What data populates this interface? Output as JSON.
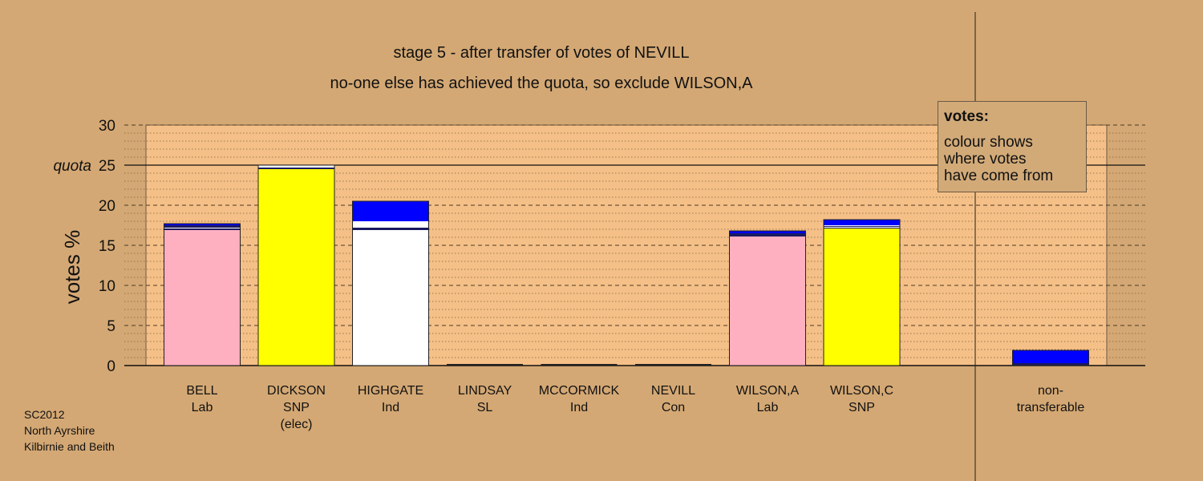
{
  "title": "stage 5 - after transfer of votes of NEVILL",
  "subtitle": "no-one else has achieved the quota, so exclude WILSON,A",
  "footer": [
    "SC2012",
    "North Ayrshire",
    "Kilbirnie and Beith"
  ],
  "legend": {
    "title": "votes:",
    "lines": [
      "colour shows",
      "where votes",
      "have come from"
    ]
  },
  "colors": {
    "background": "#d4a874",
    "plot_bg": "#f5c087",
    "Lab": "#ffb0c0",
    "SNP": "#ffff00",
    "Ind": "#ffffff",
    "transfer_blue": "#0000ff",
    "transfer_navy": "#1a1a60"
  },
  "chart_data": {
    "type": "bar",
    "stacked": true,
    "ylabel": "votes %",
    "ylim": [
      0,
      30
    ],
    "yticks": [
      0,
      5,
      10,
      15,
      20,
      25,
      30
    ],
    "quota": 25,
    "quota_label": "quota",
    "grid": true,
    "categories": [
      {
        "name": "BELL",
        "party": "Lab",
        "note": ""
      },
      {
        "name": "DICKSON",
        "party": "SNP",
        "note": "(elec)"
      },
      {
        "name": "HIGHGATE",
        "party": "Ind",
        "note": ""
      },
      {
        "name": "LINDSAY",
        "party": "SL",
        "note": ""
      },
      {
        "name": "MCCORMICK",
        "party": "Ind",
        "note": ""
      },
      {
        "name": "NEVILL",
        "party": "Con",
        "note": ""
      },
      {
        "name": "WILSON,A",
        "party": "Lab",
        "note": ""
      },
      {
        "name": "WILSON,C",
        "party": "SNP",
        "note": ""
      }
    ],
    "non_transferable": {
      "label": [
        "non-",
        "transferable"
      ],
      "segments": [
        {
          "color": "#1a1a60",
          "value": 0.3
        },
        {
          "color": "#0000ff",
          "value": 1.6
        }
      ]
    },
    "stacks": [
      [
        {
          "color": "#ffb0c0",
          "value": 16.9
        },
        {
          "color": "#1a1a60",
          "value": 0.2
        },
        {
          "color": "#ffffff",
          "value": 0.1
        },
        {
          "color": "#1a1a60",
          "value": 0.3
        },
        {
          "color": "#0000ff",
          "value": 0.2
        }
      ],
      [
        {
          "color": "#ffff00",
          "value": 24.5
        },
        {
          "color": "#1a1a60",
          "value": 0.2
        },
        {
          "color": "#ffffff",
          "value": 0.3
        }
      ],
      [
        {
          "color": "#ffffff",
          "value": 16.9
        },
        {
          "color": "#1a1a60",
          "value": 0.3
        },
        {
          "color": "#ffffff",
          "value": 0.8
        },
        {
          "color": "#0000ff",
          "value": 2.5
        }
      ],
      [],
      [],
      [],
      [
        {
          "color": "#ffb0c0",
          "value": 16.1
        },
        {
          "color": "#1a1a60",
          "value": 0.4
        },
        {
          "color": "#0000ff",
          "value": 0.3
        }
      ],
      [
        {
          "color": "#ffff00",
          "value": 17.1
        },
        {
          "color": "#1a1a60",
          "value": 0.1
        },
        {
          "color": "#ffffff",
          "value": 0.1
        },
        {
          "color": "#1a1a60",
          "value": 0.1
        },
        {
          "color": "#ffffff",
          "value": 0.1
        },
        {
          "color": "#0000ff",
          "value": 0.7
        }
      ]
    ]
  }
}
